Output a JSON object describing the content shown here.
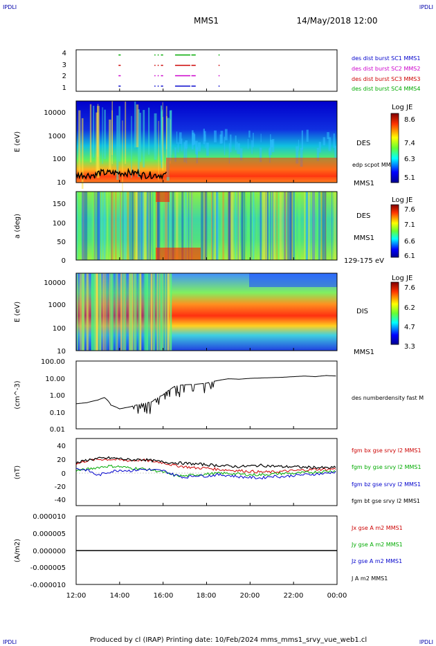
{
  "header": {
    "corner_left": "IPDLI",
    "corner_right": "IPDLI",
    "mission": "MMS1",
    "datetime": "14/May/2018 12:00"
  },
  "footer": {
    "text": "Produced by cl (IRAP)   Printing date: 10/Feb/2024   mms_mms1_srvy_vue_web1.cl",
    "corner_left": "IPDLI",
    "corner_right": "IPDLI"
  },
  "colors": {
    "blue": "#0000cc",
    "magenta": "#cc00cc",
    "red": "#cc0000",
    "green": "#00aa00",
    "black": "#000000"
  },
  "x_axis": {
    "ticks": [
      "12:00",
      "14:00",
      "16:00",
      "18:00",
      "20:00",
      "22:00",
      "00:00"
    ],
    "range_hours": [
      12,
      24
    ]
  },
  "chart_data": [
    {
      "type": "scatter",
      "id": "burst",
      "y_ticks": [
        "4",
        "3",
        "2",
        "1"
      ],
      "ylim": [
        0.5,
        4.5
      ],
      "legend": [
        {
          "label": "des dist burst SC1 MMS1",
          "color": "#0000cc"
        },
        {
          "label": "des dist burst SC2 MMS2",
          "color": "#cc00cc"
        },
        {
          "label": "des dist burst SC3 MMS3",
          "color": "#cc0000"
        },
        {
          "label": "des dist burst SC4 MMS4",
          "color": "#00aa00"
        }
      ],
      "intervals_hours": [
        [
          13.95,
          14.05
        ],
        [
          15.6,
          15.65
        ],
        [
          15.75,
          15.8
        ],
        [
          15.9,
          16.0
        ],
        [
          16.55,
          17.25
        ],
        [
          17.3,
          17.5
        ],
        [
          18.55,
          18.6
        ]
      ]
    },
    {
      "type": "heatmap",
      "id": "des_energy",
      "ylabel": "E (eV)",
      "y_ticks": [
        "10000",
        "1000",
        "100",
        "10"
      ],
      "ylim_log": [
        10,
        30000
      ],
      "right_label": "DES",
      "overlay_label": "edp scpot MMS1",
      "sat_label": "MMS1",
      "colorbar": {
        "title": "Log JE",
        "ticks": [
          "8.6",
          "7.4",
          "6.3",
          "5.1"
        ]
      }
    },
    {
      "type": "heatmap",
      "id": "des_pitch",
      "ylabel": "a (deg)",
      "y_ticks": [
        "150",
        "100",
        "50",
        "0"
      ],
      "ylim": [
        0,
        180
      ],
      "right_label": "DES",
      "sat_label": "MMS1",
      "energy_range": "129-175 eV",
      "colorbar": {
        "title": "Log JE",
        "ticks": [
          "7.6",
          "7.1",
          "6.6",
          "6.1"
        ]
      }
    },
    {
      "type": "heatmap",
      "id": "dis_energy",
      "ylabel": "E (eV)",
      "y_ticks": [
        "10000",
        "1000",
        "100",
        "10"
      ],
      "ylim_log": [
        10,
        20000
      ],
      "right_label": "DIS",
      "sat_label": "MMS1",
      "colorbar": {
        "title": "Log JE",
        "ticks": [
          "7.6",
          "6.2",
          "4.7",
          "3.3"
        ]
      }
    },
    {
      "type": "line",
      "id": "density",
      "ylabel": "(cm^-3)",
      "y_ticks": [
        "100.00",
        "10.00",
        "1.00",
        "0.10",
        "0.01"
      ],
      "ylim_log": [
        0.01,
        100
      ],
      "legend": [
        {
          "label": "des numberdensity fast M",
          "color": "#000000"
        }
      ],
      "x": [
        12.0,
        12.5,
        13.0,
        13.3,
        13.6,
        14.0,
        14.5,
        15.0,
        15.5,
        16.0,
        16.3,
        16.6,
        17.0,
        17.5,
        18.0,
        18.5,
        19.0,
        19.5,
        20.0,
        20.5,
        21.0,
        21.5,
        22.0,
        22.5,
        23.0,
        23.5,
        24.0
      ],
      "y": [
        0.3,
        0.35,
        0.5,
        0.7,
        0.25,
        0.15,
        0.2,
        0.3,
        0.4,
        1.0,
        2.0,
        3.5,
        4.0,
        4.2,
        5.0,
        7.0,
        9.0,
        8.5,
        9.5,
        10.0,
        10.5,
        11.0,
        12.0,
        13.0,
        12.0,
        14.0,
        13.0
      ]
    },
    {
      "type": "line",
      "id": "fgm",
      "ylabel": "(nT)",
      "y_ticks": [
        "40",
        "20",
        "0",
        "-20",
        "-40"
      ],
      "ylim": [
        -50,
        50
      ],
      "x": [
        12.0,
        12.5,
        13.0,
        13.5,
        14.0,
        14.5,
        15.0,
        15.5,
        16.0,
        16.5,
        17.0,
        17.5,
        18.0,
        18.5,
        19.0,
        19.5,
        20.0,
        20.5,
        21.0,
        21.5,
        22.0,
        22.5,
        23.0,
        23.5,
        24.0
      ],
      "series": [
        {
          "name": "fgm bx gse srvy l2 MMS1",
          "color": "#cc0000",
          "values": [
            12,
            17,
            19,
            19,
            18,
            17,
            18,
            16,
            14,
            10,
            8,
            6,
            6,
            4,
            3,
            2,
            1,
            0,
            0,
            1,
            2,
            3,
            4,
            4,
            5
          ]
        },
        {
          "name": "fgm by gse srvy l2 MMS1",
          "color": "#00aa00",
          "values": [
            2,
            4,
            7,
            9,
            8,
            6,
            5,
            3,
            0,
            -5,
            -6,
            -4,
            -3,
            -2,
            -2,
            -3,
            -4,
            -4,
            -3,
            -2,
            -2,
            -1,
            0,
            1,
            2
          ]
        },
        {
          "name": "fgm bz gse srvy l2 MMS1",
          "color": "#0000cc",
          "values": [
            5,
            3,
            -5,
            0,
            3,
            2,
            4,
            3,
            2,
            -4,
            -8,
            -5,
            -6,
            -4,
            -5,
            -7,
            -8,
            -9,
            -6,
            -7,
            -5,
            -4,
            -3,
            -2,
            1
          ]
        },
        {
          "name": "fgm bt gse srvy l2 MMS1",
          "color": "#000000",
          "values": [
            13,
            18,
            20,
            21,
            20,
            18,
            19,
            17,
            15,
            14,
            13,
            12,
            11,
            10,
            9,
            8,
            9,
            10,
            9,
            8,
            8,
            7,
            7,
            6,
            7
          ]
        }
      ]
    },
    {
      "type": "line",
      "id": "current",
      "ylabel": "(A/m2)",
      "y_ticks": [
        "0.000010",
        "0.000005",
        "0.000000",
        "-0.000005",
        "-0.000010"
      ],
      "ylim": [
        -1e-05,
        1e-05
      ],
      "x": [
        12.0,
        24.0
      ],
      "series": [
        {
          "name": "Jx gse A m2 MMS1",
          "color": "#cc0000",
          "values": [
            0,
            0
          ]
        },
        {
          "name": "Jy gse A m2 MMS1",
          "color": "#00aa00",
          "values": [
            0,
            0
          ]
        },
        {
          "name": "Jz gse A m2 MMS1",
          "color": "#0000cc",
          "values": [
            0,
            0
          ]
        },
        {
          "name": "J A m2 MMS1",
          "color": "#000000",
          "values": [
            0,
            0
          ]
        }
      ]
    }
  ]
}
